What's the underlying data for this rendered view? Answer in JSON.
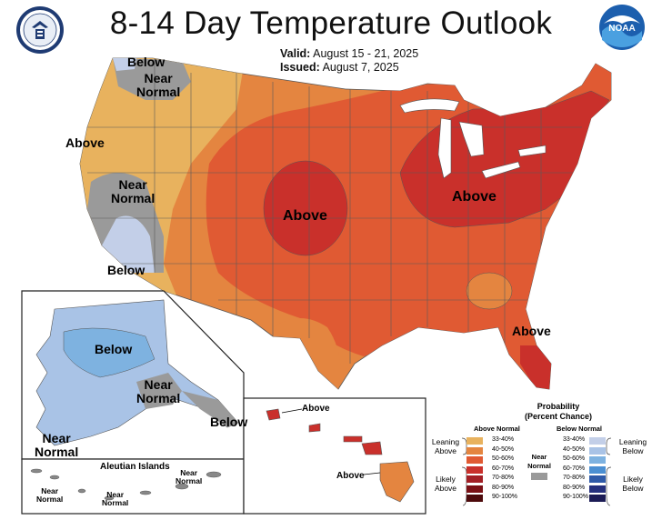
{
  "title": "8-14 Day Temperature Outlook",
  "valid_label": "Valid:",
  "valid_dates": "August 15 - 21, 2025",
  "issued_label": "Issued:",
  "issued_date": "August 7, 2025",
  "logos": {
    "left": "Department of Commerce seal",
    "right": "NOAA"
  },
  "map_labels": {
    "nw_below": "Below",
    "nw_near1": "Near",
    "nw_near2": "Normal",
    "west_above": "Above",
    "ca_near1": "Near",
    "ca_near2": "Normal",
    "sw_below": "Below",
    "plains_above": "Above",
    "lakes_above": "Above",
    "fl_above": "Above"
  },
  "alaska_labels": {
    "below": "Below",
    "near1": "Near",
    "near2": "Normal",
    "pan_below": "Below",
    "sw_near1": "Near",
    "sw_near2": "Normal"
  },
  "aleutian": {
    "title": "Aleutian Islands",
    "near_a1": "Near",
    "near_a2": "Normal",
    "near_b1": "Near",
    "near_b2": "Normal",
    "near_c1": "Near",
    "near_c2": "Normal"
  },
  "hawaii_labels": {
    "above1": "Above",
    "above2": "Above"
  },
  "legend": {
    "title1": "Probability",
    "title2": "(Percent Chance)",
    "above_head": "Above Normal",
    "below_head": "Below Normal",
    "near_label1": "Near",
    "near_label2": "Normal",
    "leaning_above1": "Leaning",
    "leaning_above2": "Above",
    "likely_above1": "Likely",
    "likely_above2": "Above",
    "leaning_below1": "Leaning",
    "leaning_below2": "Below",
    "likely_below1": "Likely",
    "likely_below2": "Below",
    "ranges": [
      "33-40%",
      "40-50%",
      "50-60%",
      "60-70%",
      "70-80%",
      "80-90%",
      "90-100%"
    ],
    "above_colors": [
      "#e8b25e",
      "#e48540",
      "#e05a33",
      "#c9302b",
      "#a21f25",
      "#7a1015",
      "#4d0a0c"
    ],
    "below_colors": [
      "#c3cfe8",
      "#a9c3e6",
      "#7eb2e0",
      "#4b8fd2",
      "#2f5aa8",
      "#25307d",
      "#1b1b55"
    ],
    "near_color": "#9a9a9a"
  }
}
